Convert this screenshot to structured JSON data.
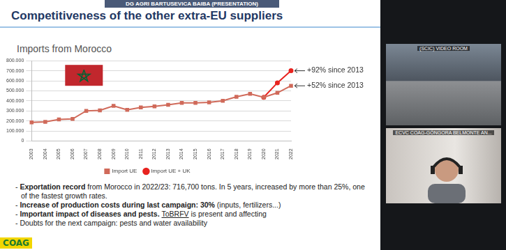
{
  "header": {
    "presenter": "DG AGRI BARTUSEVICA BAIBA (PRESENTATION)",
    "title": "Competitiveness of the other extra-EU suppliers"
  },
  "chart_data": {
    "type": "line",
    "title": "Imports from Morocco",
    "categories": [
      "2003",
      "2004",
      "2005",
      "2006",
      "2007",
      "2008",
      "2009",
      "2010",
      "2011",
      "2012",
      "2013",
      "2014",
      "2015",
      "2016",
      "2017",
      "2018",
      "2019",
      "2020",
      "2021",
      "2022"
    ],
    "series": [
      {
        "name": "Import UE",
        "color": "#d06a5a",
        "marker": "square",
        "line_style": "solid",
        "values": [
          185000,
          190000,
          215000,
          220000,
          300000,
          305000,
          350000,
          310000,
          335000,
          345000,
          360000,
          380000,
          380000,
          385000,
          400000,
          440000,
          470000,
          435000,
          480000,
          550000
        ]
      },
      {
        "name": "Import UE + UK",
        "color": "#e8231f",
        "marker": "circle",
        "line_style": "solid",
        "values": [
          null,
          null,
          null,
          null,
          null,
          null,
          null,
          null,
          null,
          null,
          null,
          null,
          null,
          null,
          null,
          null,
          null,
          435000,
          580000,
          700000
        ]
      }
    ],
    "ylim": [
      0,
      800000
    ],
    "yticks": [
      0,
      {
        "value": 100000,
        "label": "100.000"
      },
      {
        "value": 200000,
        "label": "200.000"
      },
      {
        "value": 300000,
        "label": "300.000"
      },
      {
        "value": 400000,
        "label": "400.000"
      },
      {
        "value": 500000,
        "label": "500.000"
      },
      {
        "value": 600000,
        "label": "600.000"
      },
      {
        "value": 700000,
        "label": "700.000"
      },
      {
        "value": 800000,
        "label": "800.000"
      }
    ],
    "grid": true,
    "legend": "bottom",
    "annotations": [
      {
        "text": "+92% since 2013",
        "x": "2022",
        "y": 700000
      },
      {
        "text": "+52% since 2013",
        "x": "2022",
        "y": 550000
      }
    ]
  },
  "bullets": [
    [
      {
        "text": "- "
      },
      {
        "text": "Exportation record",
        "style": "bold"
      },
      {
        "text": " from Morocco in 2022/23: 716,700 tons. In 5 years, increased by more than 25%, one of the fastest growth rates."
      }
    ],
    [
      {
        "text": "- "
      },
      {
        "text": "Increase of production costs during last campaign: 30%",
        "style": "bold"
      },
      {
        "text": " (inputs, fertilizers...)"
      }
    ],
    [
      {
        "text": "- "
      },
      {
        "text": "Important impact of diseases and pests. ",
        "style": "bold"
      },
      {
        "text": "ToBRFV",
        "style": "underline"
      },
      {
        "text": " is present and affecting"
      }
    ],
    [
      {
        "text": "- Doubts for the next campaign: pests and water availability"
      }
    ]
  ],
  "logo": "COAG",
  "video_tiles": [
    "(SCIC) VIDEO ROOM",
    "ECVC COAG-GÓNGORA BELMONTE AN..."
  ]
}
